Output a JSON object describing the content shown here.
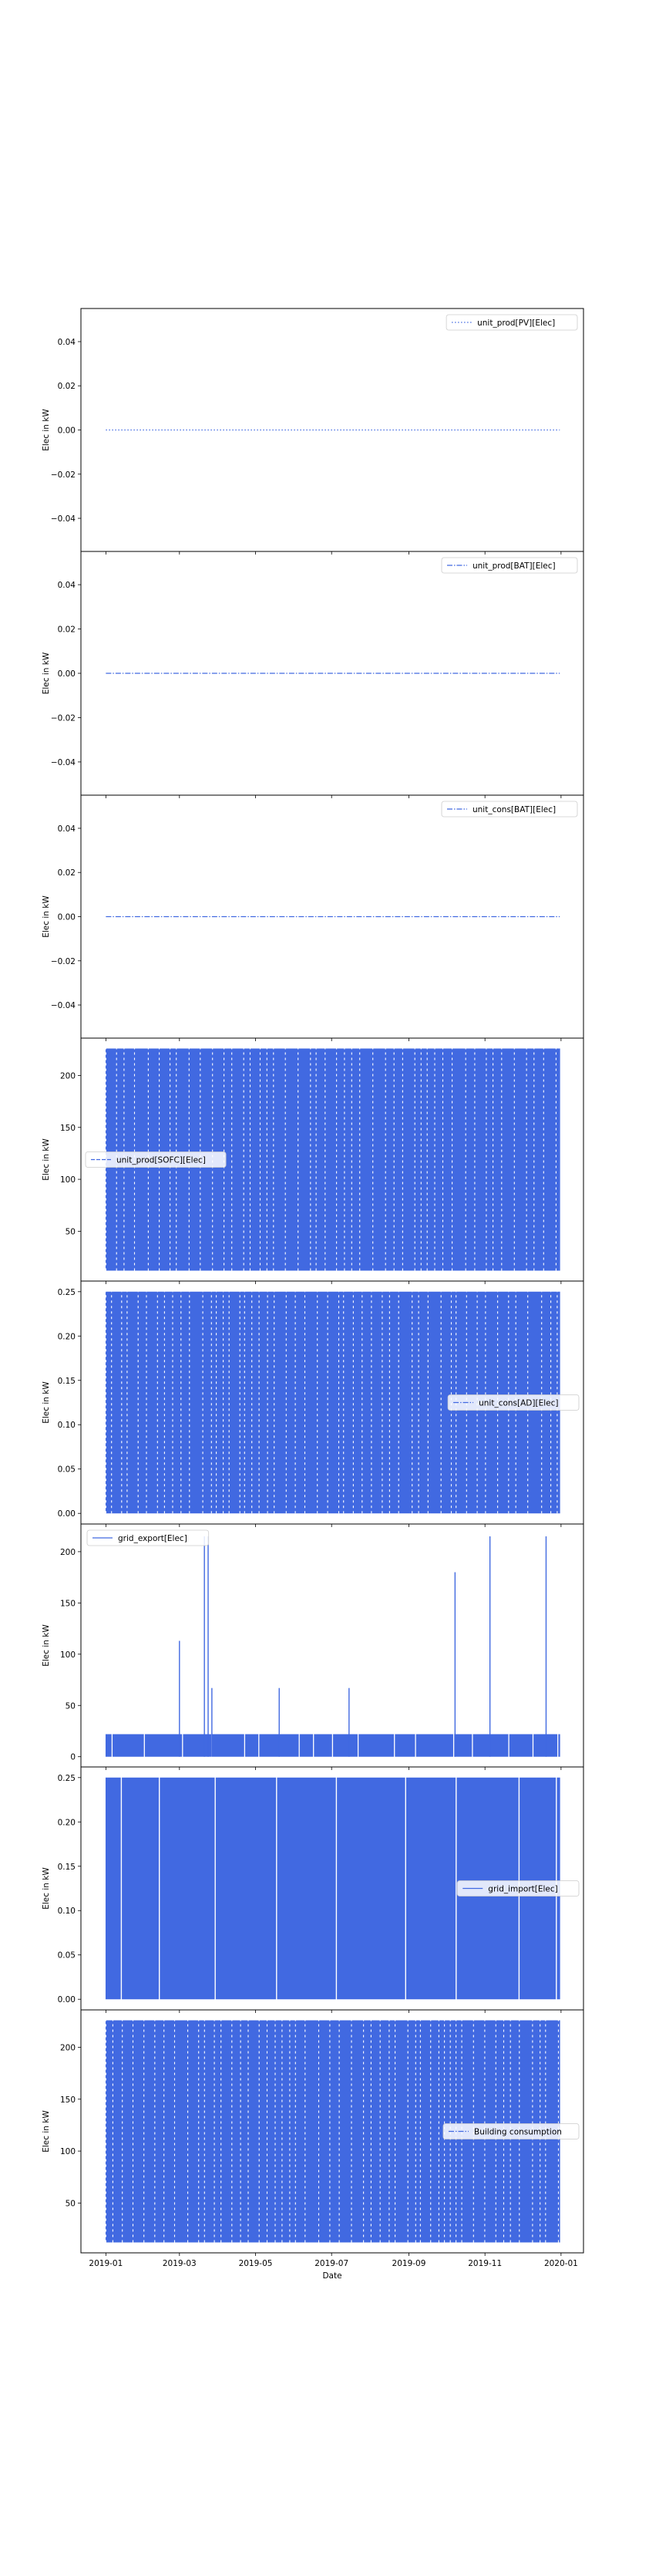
{
  "figure": {
    "xlabel": "Date"
  },
  "x_ticks": [
    "2019-01",
    "2019-03",
    "2019-05",
    "2019-07",
    "2019-09",
    "2019-11",
    "2020-01"
  ],
  "chart_data": [
    {
      "type": "line",
      "title": "",
      "ylabel": "Elec in kW",
      "legend_placement": "top-right",
      "series": [
        {
          "name": "unit_prod[PV][Elec]",
          "style": "dotted",
          "color": "#4169E1",
          "values": [
            0,
            0
          ]
        }
      ],
      "x": [
        "2019-01-01",
        "2019-12-31"
      ],
      "ylim": [
        -0.055,
        0.055
      ],
      "yticks": [
        0.04,
        0.02,
        0.0,
        -0.02,
        -0.04
      ],
      "ytick_labels": [
        "0.04",
        "0.02",
        "0.00",
        "−0.02",
        "−0.04"
      ]
    },
    {
      "type": "line",
      "title": "",
      "ylabel": "Elec in kW",
      "legend_placement": "top-right",
      "series": [
        {
          "name": "unit_prod[BAT][Elec]",
          "style": "dashdot",
          "color": "#4169E1",
          "values": [
            0,
            0
          ]
        }
      ],
      "x": [
        "2019-01-01",
        "2019-12-31"
      ],
      "ylim": [
        -0.055,
        0.055
      ],
      "yticks": [
        0.04,
        0.02,
        0.0,
        -0.02,
        -0.04
      ],
      "ytick_labels": [
        "0.04",
        "0.02",
        "0.00",
        "−0.02",
        "−0.04"
      ]
    },
    {
      "type": "line",
      "title": "",
      "ylabel": "Elec in kW",
      "legend_placement": "top-right",
      "series": [
        {
          "name": "unit_cons[BAT][Elec]",
          "style": "dashdot",
          "color": "#4169E1",
          "values": [
            0,
            0
          ]
        }
      ],
      "x": [
        "2019-01-01",
        "2019-12-31"
      ],
      "ylim": [
        -0.055,
        0.055
      ],
      "yticks": [
        0.04,
        0.02,
        0.0,
        -0.02,
        -0.04
      ],
      "ytick_labels": [
        "0.04",
        "0.02",
        "0.00",
        "−0.02",
        "−0.04"
      ]
    },
    {
      "type": "line",
      "title": "",
      "ylabel": "Elec in kW",
      "legend_placement": "center-left",
      "series": [
        {
          "name": "unit_prod[SOFC][Elec]",
          "style": "dashed",
          "color": "#4169E1",
          "range": [
            12,
            226
          ]
        }
      ],
      "x_range": [
        "2019-01-01",
        "2019-12-31"
      ],
      "ylim": [
        2,
        236
      ],
      "yticks": [
        200,
        150,
        100,
        50
      ],
      "ytick_labels": [
        "200",
        "150",
        "100",
        "50"
      ]
    },
    {
      "type": "line",
      "title": "",
      "ylabel": "Elec in kW",
      "legend_placement": "center-right",
      "series": [
        {
          "name": "unit_cons[AD][Elec]",
          "style": "dashdot",
          "color": "#4169E1",
          "range": [
            0,
            0.25
          ]
        }
      ],
      "x_range": [
        "2019-01-01",
        "2019-12-31"
      ],
      "ylim": [
        -0.012,
        0.262
      ],
      "yticks": [
        0.25,
        0.2,
        0.15,
        0.1,
        0.05,
        0.0
      ],
      "ytick_labels": [
        "0.25",
        "0.20",
        "0.15",
        "0.10",
        "0.05",
        "0.00"
      ]
    },
    {
      "type": "line",
      "title": "",
      "ylabel": "Elec in kW",
      "legend_placement": "top-left",
      "series": [
        {
          "name": "grid_export[Elec]",
          "style": "solid",
          "color": "#4169E1",
          "base_range": [
            0,
            22
          ],
          "peaks": [
            {
              "x": "2019-03-01",
              "y": 113
            },
            {
              "x": "2019-03-21",
              "y": 215
            },
            {
              "x": "2019-03-24",
              "y": 215
            },
            {
              "x": "2019-03-27",
              "y": 67
            },
            {
              "x": "2019-05-20",
              "y": 67
            },
            {
              "x": "2019-07-15",
              "y": 67
            },
            {
              "x": "2019-10-08",
              "y": 180
            },
            {
              "x": "2019-11-05",
              "y": 215
            },
            {
              "x": "2019-12-20",
              "y": 215
            }
          ]
        }
      ],
      "x_range": [
        "2019-01-01",
        "2019-12-31"
      ],
      "ylim": [
        -10,
        227
      ],
      "yticks": [
        200,
        150,
        100,
        50,
        0
      ],
      "ytick_labels": [
        "200",
        "150",
        "100",
        "50",
        "0"
      ]
    },
    {
      "type": "line",
      "title": "",
      "ylabel": "Elec in kW",
      "legend_placement": "center-right",
      "series": [
        {
          "name": "grid_import[Elec]",
          "style": "solid",
          "color": "#4169E1",
          "range": [
            0,
            0.25
          ]
        }
      ],
      "x_range": [
        "2019-01-01",
        "2019-12-31"
      ],
      "ylim": [
        -0.012,
        0.262
      ],
      "yticks": [
        0.25,
        0.2,
        0.15,
        0.1,
        0.05,
        0.0
      ],
      "ytick_labels": [
        "0.25",
        "0.20",
        "0.15",
        "0.10",
        "0.05",
        "0.00"
      ]
    },
    {
      "type": "line",
      "title": "",
      "ylabel": "Elec in kW",
      "legend_placement": "center-right",
      "series": [
        {
          "name": "Building consumption",
          "style": "dashdot",
          "color": "#4169E1",
          "range": [
            12,
            226
          ]
        }
      ],
      "x_range": [
        "2019-01-01",
        "2019-12-31"
      ],
      "ylim": [
        2,
        236
      ],
      "yticks": [
        200,
        150,
        100,
        50
      ],
      "ytick_labels": [
        "200",
        "150",
        "100",
        "50"
      ]
    }
  ]
}
